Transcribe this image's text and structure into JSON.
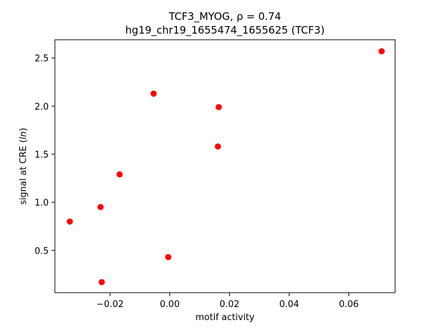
{
  "chart_data": {
    "type": "scatter",
    "title_line1": "TCF3_MYOG, ρ = 0.74",
    "title_line2": "hg19_chr19_1655474_1655625 (TCF3)",
    "xlabel": "motif activity",
    "ylabel_prefix": "signal at CRE (",
    "ylabel_italic": "ln",
    "ylabel_suffix": ")",
    "xlim": [
      -0.0385,
      0.0755
    ],
    "ylim": [
      0.06,
      2.69
    ],
    "xticks": [
      {
        "value": -0.02,
        "label": "−0.02"
      },
      {
        "value": 0.0,
        "label": "0.00"
      },
      {
        "value": 0.02,
        "label": "0.02"
      },
      {
        "value": 0.04,
        "label": "0.04"
      },
      {
        "value": 0.06,
        "label": "0.06"
      }
    ],
    "yticks": [
      {
        "value": 0.5,
        "label": "0.5"
      },
      {
        "value": 1.0,
        "label": "1.0"
      },
      {
        "value": 1.5,
        "label": "1.5"
      },
      {
        "value": 2.0,
        "label": "2.0"
      },
      {
        "value": 2.5,
        "label": "2.5"
      }
    ],
    "grid": false,
    "marker_color": "#ff0000",
    "points": [
      {
        "x": -0.0335,
        "y": 0.8
      },
      {
        "x": -0.0232,
        "y": 0.95
      },
      {
        "x": -0.0228,
        "y": 0.17
      },
      {
        "x": -0.0168,
        "y": 1.29
      },
      {
        "x": -0.0054,
        "y": 2.13
      },
      {
        "x": -0.0005,
        "y": 0.43
      },
      {
        "x": 0.0161,
        "y": 1.58
      },
      {
        "x": 0.0164,
        "y": 1.99
      },
      {
        "x": 0.071,
        "y": 2.57
      }
    ]
  }
}
